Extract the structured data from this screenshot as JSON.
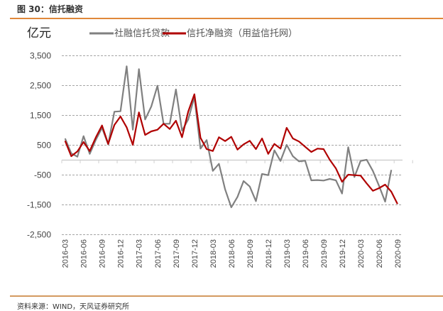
{
  "figure_title": "图 30：信托融资",
  "source": "资料来源：WIND，天风证券研究所",
  "colors": {
    "accent": "#E0883A",
    "gray_series": "#808080",
    "red_series": "#B00000",
    "grid": "#999999"
  },
  "chart_data": {
    "type": "line",
    "title": "信托融资",
    "ylabel": "亿元",
    "ylim": [
      -2500,
      3500
    ],
    "yticks": [
      3500,
      2500,
      1500,
      500,
      -500,
      -1500,
      -2500
    ],
    "ytick_labels": [
      "3,500",
      "2,500",
      "1,500",
      "500",
      "-500",
      "-1,500",
      "-2,500"
    ],
    "xtick_labels": [
      "2016-03",
      "2016-06",
      "2016-09",
      "2016-12",
      "2017-03",
      "2017-06",
      "2017-09",
      "2017-12",
      "2018-03",
      "2018-06",
      "2018-09",
      "2018-12",
      "2019-03",
      "2019-06",
      "2019-09",
      "2019-12",
      "2020-03",
      "2020-06",
      "2020-09"
    ],
    "x_start": "2016-03",
    "x_end": "2020-09",
    "grid": "horizontal dashed",
    "legend_position": "top",
    "series": [
      {
        "name": "社融信托贷款",
        "color": "#808080",
        "values": [
          726,
          226,
          115,
          805,
          210,
          686,
          1083,
          528,
          1623,
          1638,
          3146,
          1019,
          3051,
          1361,
          1797,
          2494,
          1218,
          1218,
          2368,
          988,
          1361,
          2114,
          385,
          671,
          -361,
          -123,
          -980,
          -1583,
          -1233,
          -702,
          -885,
          -1376,
          -464,
          -504,
          329,
          -28,
          512,
          131,
          -44,
          -20,
          -678,
          -670,
          -686,
          -631,
          -678,
          -1122,
          433,
          -567,
          -28,
          12,
          -361,
          -861,
          -1392,
          -329
        ]
      },
      {
        "name": "信托净融资（用益信托网）",
        "color": "#B00000",
        "values": [
          647,
          131,
          290,
          607,
          305,
          766,
          1161,
          543,
          1178,
          1464,
          1100,
          512,
          1599,
          845,
          964,
          1019,
          1218,
          1043,
          1321,
          766,
          1623,
          2209,
          750,
          369,
          305,
          766,
          638,
          781,
          353,
          528,
          647,
          369,
          726,
          210,
          543,
          385,
          1083,
          726,
          623,
          448,
          274,
          385,
          369,
          12,
          -281,
          -726,
          -488,
          -504,
          -520,
          -781,
          -1028,
          -940,
          -821,
          -1059,
          -1471
        ]
      }
    ]
  }
}
